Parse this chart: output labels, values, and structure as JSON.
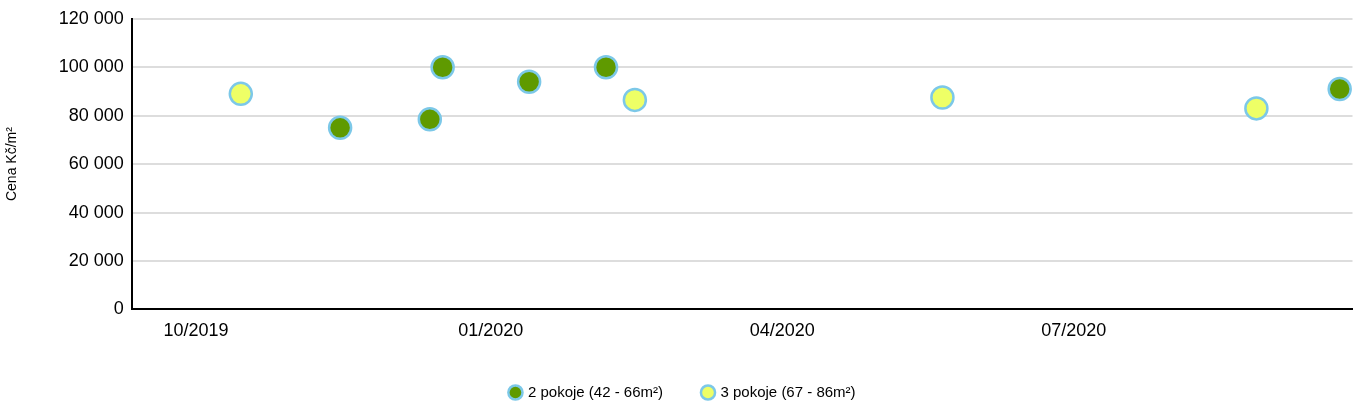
{
  "chart_data": {
    "type": "scatter",
    "ylabel": "Cena Kč/m²",
    "xlim": [
      "2019-09-11",
      "2020-09-26"
    ],
    "xticks": [
      {
        "value": "2019-10-01",
        "label": "10/2019"
      },
      {
        "value": "2020-01-01",
        "label": "01/2020"
      },
      {
        "value": "2020-04-01",
        "label": "04/2020"
      },
      {
        "value": "2020-07-01",
        "label": "07/2020"
      }
    ],
    "ylim": [
      0,
      120000
    ],
    "yticks": [
      0,
      {
        "value": 20000,
        "label": "20 000"
      },
      {
        "value": 40000,
        "label": "40 000"
      },
      {
        "value": 60000,
        "label": "60 000"
      },
      {
        "value": 80000,
        "label": "80 000"
      },
      {
        "value": 100000,
        "label": "100 000"
      },
      {
        "value": 120000,
        "label": "120 000"
      }
    ],
    "series": [
      {
        "name": "2 pokoje (42 - 66m²)",
        "color": "#5f9a00",
        "x": [
          "2019-11-15",
          "2019-12-13",
          "2019-12-17",
          "2020-01-13",
          "2020-02-06",
          "2020-09-22"
        ],
        "values": [
          75000,
          78500,
          100000,
          94000,
          100000,
          91000
        ]
      },
      {
        "name": "3 pokoje (67 - 86m²)",
        "color": "#eeff66",
        "x": [
          "2019-10-15",
          "2020-02-15",
          "2020-05-21",
          "2020-08-27"
        ],
        "values": [
          89000,
          86500,
          87500,
          83000
        ]
      }
    ],
    "grid": "y",
    "legend": "bottom",
    "marker": "circle"
  }
}
